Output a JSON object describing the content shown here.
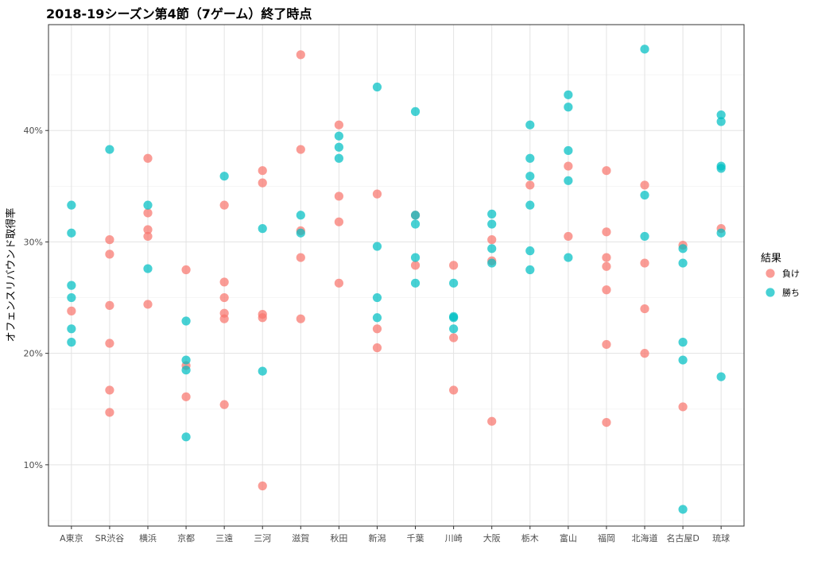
{
  "chart_data": {
    "type": "scatter",
    "title": "2018-19シーズン第4節（7ゲーム）終了時点",
    "xlabel": "",
    "ylabel": "オフェンスリバウンド取得率",
    "categories": [
      "A東京",
      "SR渋谷",
      "横浜",
      "京都",
      "三遠",
      "三河",
      "滋賀",
      "秋田",
      "新潟",
      "千葉",
      "川崎",
      "大阪",
      "栃木",
      "富山",
      "福岡",
      "北海道",
      "名古屋D",
      "琉球"
    ],
    "ylim": [
      4.5,
      49.5
    ],
    "yticks": [
      10,
      20,
      30,
      40
    ],
    "ytick_labels": [
      "10%",
      "20%",
      "30%",
      "40%"
    ],
    "grid": true,
    "legend": {
      "title": "結果",
      "placement": "right"
    },
    "series": [
      {
        "name": "負け",
        "color": "#F8766D",
        "points": [
          {
            "x": "A東京",
            "y": 23.8
          },
          {
            "x": "SR渋谷",
            "y": 30.2
          },
          {
            "x": "SR渋谷",
            "y": 28.9
          },
          {
            "x": "SR渋谷",
            "y": 24.3
          },
          {
            "x": "SR渋谷",
            "y": 20.9
          },
          {
            "x": "SR渋谷",
            "y": 16.7
          },
          {
            "x": "SR渋谷",
            "y": 14.7
          },
          {
            "x": "横浜",
            "y": 37.5
          },
          {
            "x": "横浜",
            "y": 32.6
          },
          {
            "x": "横浜",
            "y": 31.1
          },
          {
            "x": "横浜",
            "y": 30.5
          },
          {
            "x": "横浜",
            "y": 24.4
          },
          {
            "x": "京都",
            "y": 27.5
          },
          {
            "x": "京都",
            "y": 18.9
          },
          {
            "x": "京都",
            "y": 16.1
          },
          {
            "x": "三遠",
            "y": 33.3
          },
          {
            "x": "三遠",
            "y": 26.4
          },
          {
            "x": "三遠",
            "y": 25.0
          },
          {
            "x": "三遠",
            "y": 23.6
          },
          {
            "x": "三遠",
            "y": 23.1
          },
          {
            "x": "三遠",
            "y": 15.4
          },
          {
            "x": "三河",
            "y": 36.4
          },
          {
            "x": "三河",
            "y": 35.3
          },
          {
            "x": "三河",
            "y": 23.5
          },
          {
            "x": "三河",
            "y": 23.2
          },
          {
            "x": "三河",
            "y": 8.1
          },
          {
            "x": "滋賀",
            "y": 46.8
          },
          {
            "x": "滋賀",
            "y": 38.3
          },
          {
            "x": "滋賀",
            "y": 31.0
          },
          {
            "x": "滋賀",
            "y": 28.6
          },
          {
            "x": "滋賀",
            "y": 23.1
          },
          {
            "x": "秋田",
            "y": 40.5
          },
          {
            "x": "秋田",
            "y": 34.1
          },
          {
            "x": "秋田",
            "y": 31.8
          },
          {
            "x": "秋田",
            "y": 26.3
          },
          {
            "x": "新潟",
            "y": 34.3
          },
          {
            "x": "新潟",
            "y": 22.2
          },
          {
            "x": "新潟",
            "y": 20.5
          },
          {
            "x": "千葉",
            "y": 32.4
          },
          {
            "x": "千葉",
            "y": 27.9
          },
          {
            "x": "川崎",
            "y": 27.9
          },
          {
            "x": "川崎",
            "y": 21.4
          },
          {
            "x": "川崎",
            "y": 16.7
          },
          {
            "x": "大阪",
            "y": 30.2
          },
          {
            "x": "大阪",
            "y": 28.3
          },
          {
            "x": "大阪",
            "y": 13.9
          },
          {
            "x": "栃木",
            "y": 35.1
          },
          {
            "x": "富山",
            "y": 36.8
          },
          {
            "x": "富山",
            "y": 30.5
          },
          {
            "x": "福岡",
            "y": 36.4
          },
          {
            "x": "福岡",
            "y": 30.9
          },
          {
            "x": "福岡",
            "y": 28.6
          },
          {
            "x": "福岡",
            "y": 27.8
          },
          {
            "x": "福岡",
            "y": 25.7
          },
          {
            "x": "福岡",
            "y": 20.8
          },
          {
            "x": "福岡",
            "y": 13.8
          },
          {
            "x": "北海道",
            "y": 35.1
          },
          {
            "x": "北海道",
            "y": 28.1
          },
          {
            "x": "北海道",
            "y": 24.0
          },
          {
            "x": "北海道",
            "y": 20.0
          },
          {
            "x": "名古屋D",
            "y": 29.7
          },
          {
            "x": "名古屋D",
            "y": 15.2
          },
          {
            "x": "琉球",
            "y": 31.2
          }
        ]
      },
      {
        "name": "勝ち",
        "color": "#00BFC4",
        "points": [
          {
            "x": "A東京",
            "y": 33.3
          },
          {
            "x": "A東京",
            "y": 30.8
          },
          {
            "x": "A東京",
            "y": 26.1
          },
          {
            "x": "A東京",
            "y": 25.0
          },
          {
            "x": "A東京",
            "y": 22.2
          },
          {
            "x": "A東京",
            "y": 21.0
          },
          {
            "x": "SR渋谷",
            "y": 38.3
          },
          {
            "x": "横浜",
            "y": 33.3
          },
          {
            "x": "横浜",
            "y": 27.6
          },
          {
            "x": "京都",
            "y": 22.9
          },
          {
            "x": "京都",
            "y": 19.4
          },
          {
            "x": "京都",
            "y": 18.5
          },
          {
            "x": "京都",
            "y": 12.5
          },
          {
            "x": "三遠",
            "y": 35.9
          },
          {
            "x": "三河",
            "y": 31.2
          },
          {
            "x": "三河",
            "y": 18.4
          },
          {
            "x": "滋賀",
            "y": 32.4
          },
          {
            "x": "滋賀",
            "y": 30.8
          },
          {
            "x": "秋田",
            "y": 39.5
          },
          {
            "x": "秋田",
            "y": 38.5
          },
          {
            "x": "秋田",
            "y": 37.5
          },
          {
            "x": "新潟",
            "y": 43.9
          },
          {
            "x": "新潟",
            "y": 29.6
          },
          {
            "x": "新潟",
            "y": 25.0
          },
          {
            "x": "新潟",
            "y": 23.2
          },
          {
            "x": "千葉",
            "y": 41.7
          },
          {
            "x": "千葉",
            "y": 32.4
          },
          {
            "x": "千葉",
            "y": 31.6
          },
          {
            "x": "千葉",
            "y": 28.6
          },
          {
            "x": "千葉",
            "y": 26.3
          },
          {
            "x": "川崎",
            "y": 26.3
          },
          {
            "x": "川崎",
            "y": 23.3
          },
          {
            "x": "川崎",
            "y": 23.2
          },
          {
            "x": "川崎",
            "y": 22.2
          },
          {
            "x": "大阪",
            "y": 32.5
          },
          {
            "x": "大阪",
            "y": 31.6
          },
          {
            "x": "大阪",
            "y": 29.4
          },
          {
            "x": "大阪",
            "y": 28.1
          },
          {
            "x": "栃木",
            "y": 40.5
          },
          {
            "x": "栃木",
            "y": 37.5
          },
          {
            "x": "栃木",
            "y": 35.9
          },
          {
            "x": "栃木",
            "y": 33.3
          },
          {
            "x": "栃木",
            "y": 29.2
          },
          {
            "x": "栃木",
            "y": 27.5
          },
          {
            "x": "富山",
            "y": 43.2
          },
          {
            "x": "富山",
            "y": 42.1
          },
          {
            "x": "富山",
            "y": 38.2
          },
          {
            "x": "富山",
            "y": 35.5
          },
          {
            "x": "富山",
            "y": 28.6
          },
          {
            "x": "北海道",
            "y": 47.3
          },
          {
            "x": "北海道",
            "y": 34.2
          },
          {
            "x": "北海道",
            "y": 30.5
          },
          {
            "x": "名古屋D",
            "y": 29.4
          },
          {
            "x": "名古屋D",
            "y": 28.1
          },
          {
            "x": "名古屋D",
            "y": 21.0
          },
          {
            "x": "名古屋D",
            "y": 19.4
          },
          {
            "x": "名古屋D",
            "y": 6.0
          },
          {
            "x": "琉球",
            "y": 41.4
          },
          {
            "x": "琉球",
            "y": 40.8
          },
          {
            "x": "琉球",
            "y": 36.8
          },
          {
            "x": "琉球",
            "y": 36.6
          },
          {
            "x": "琉球",
            "y": 30.8
          },
          {
            "x": "琉球",
            "y": 17.9
          }
        ]
      }
    ]
  }
}
